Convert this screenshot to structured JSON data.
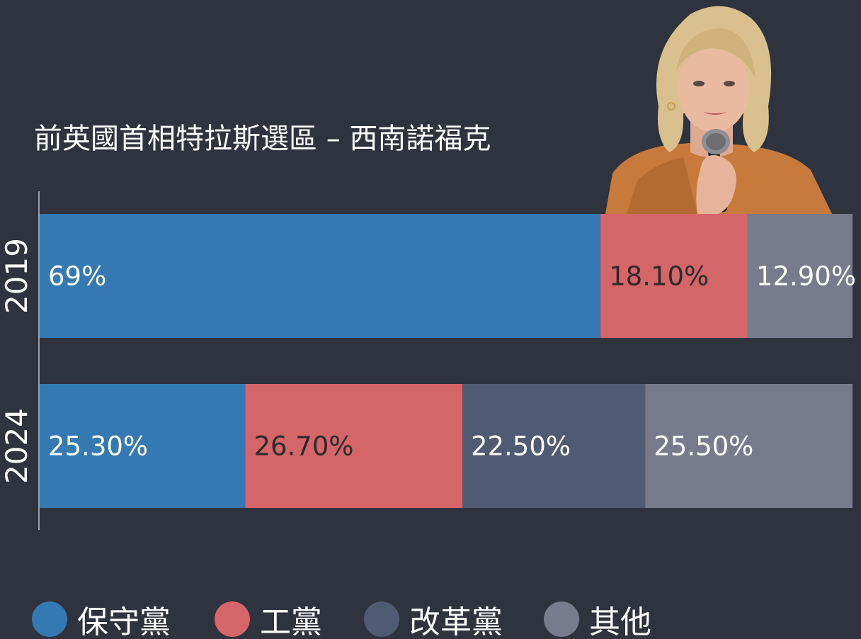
{
  "chart_data": {
    "type": "bar",
    "orientation": "horizontal",
    "stacked": true,
    "title": "前英國首相特拉斯選區 – 西南諾福克",
    "categories": [
      "2019",
      "2024"
    ],
    "series": [
      {
        "name": "保守黨",
        "color": "#3579b3",
        "values": [
          69,
          25.3
        ],
        "labels": [
          "69%",
          "25.30%"
        ],
        "label_color": "#ffffff"
      },
      {
        "name": "工黨",
        "color": "#d4666a",
        "values": [
          18.1,
          26.7
        ],
        "labels": [
          "18.10%",
          "26.70%"
        ],
        "label_color": "#2b2b2b"
      },
      {
        "name": "改革黨",
        "color": "#4f5a73",
        "values": [
          0,
          22.5
        ],
        "labels": [
          "",
          "22.50%"
        ],
        "label_color": "#ffffff"
      },
      {
        "name": "其他",
        "color": "#787b8b",
        "values": [
          12.9,
          25.5
        ],
        "labels": [
          "12.90%",
          "25.50%"
        ],
        "label_color": "#ffffff"
      }
    ],
    "xlim": [
      0,
      100
    ],
    "grid": false,
    "legend_position": "bottom"
  },
  "photo": {
    "alt_name": "portrait-photo",
    "suit_color": "#c87a3c",
    "hair_color": "#d9c08e",
    "skin_color": "#e9b9a0"
  }
}
